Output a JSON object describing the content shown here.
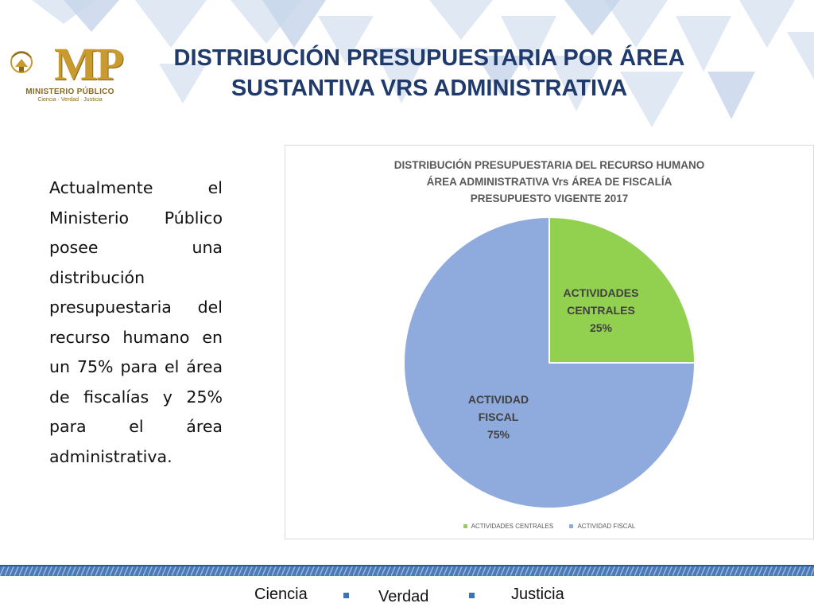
{
  "header": {
    "logo": {
      "text": "MP",
      "subtitle": "MINISTERIO PÚBLICO",
      "motto": "Ciencia · Verdad · Justicia"
    },
    "title_lines": [
      "DISTRIBUCIÓN PRESUPUESTARIA POR ÁREA",
      "SUSTANTIVA VRS ADMINISTRATIVA"
    ]
  },
  "body": {
    "paragraph": "Actualmente el Ministerio Público posee una distribución presupuestaria del recurso humano en un 75% para el área de fiscalías y 25% para el área administrativa."
  },
  "chart_data": {
    "type": "pie",
    "title_lines": [
      "DISTRIBUCIÓN PRESUPUESTARIA DEL RECURSO HUMANO",
      "ÁREA ADMINISTRATIVA Vrs ÁREA DE FISCALÍA",
      "PRESUPUESTO VIGENTE 2017"
    ],
    "slices": [
      {
        "name": "ACTIVIDADES CENTRALES",
        "label_lines": [
          "ACTIVIDADES",
          "CENTRALES"
        ],
        "value": 25,
        "value_label": "25%",
        "color": "#92d050"
      },
      {
        "name": "ACTIVIDAD FISCAL",
        "label_lines": [
          "ACTIVIDAD",
          "FISCAL"
        ],
        "value": 75,
        "value_label": "75%",
        "color": "#8faadc"
      }
    ],
    "legend": {
      "position": "bottom",
      "items": [
        "ACTIVIDADES CENTRALES",
        "ACTIVIDAD FISCAL"
      ]
    }
  },
  "footer": {
    "motto": [
      "Ciencia",
      "Verdad",
      "Justicia"
    ],
    "accent_color": "#3f72b3"
  }
}
